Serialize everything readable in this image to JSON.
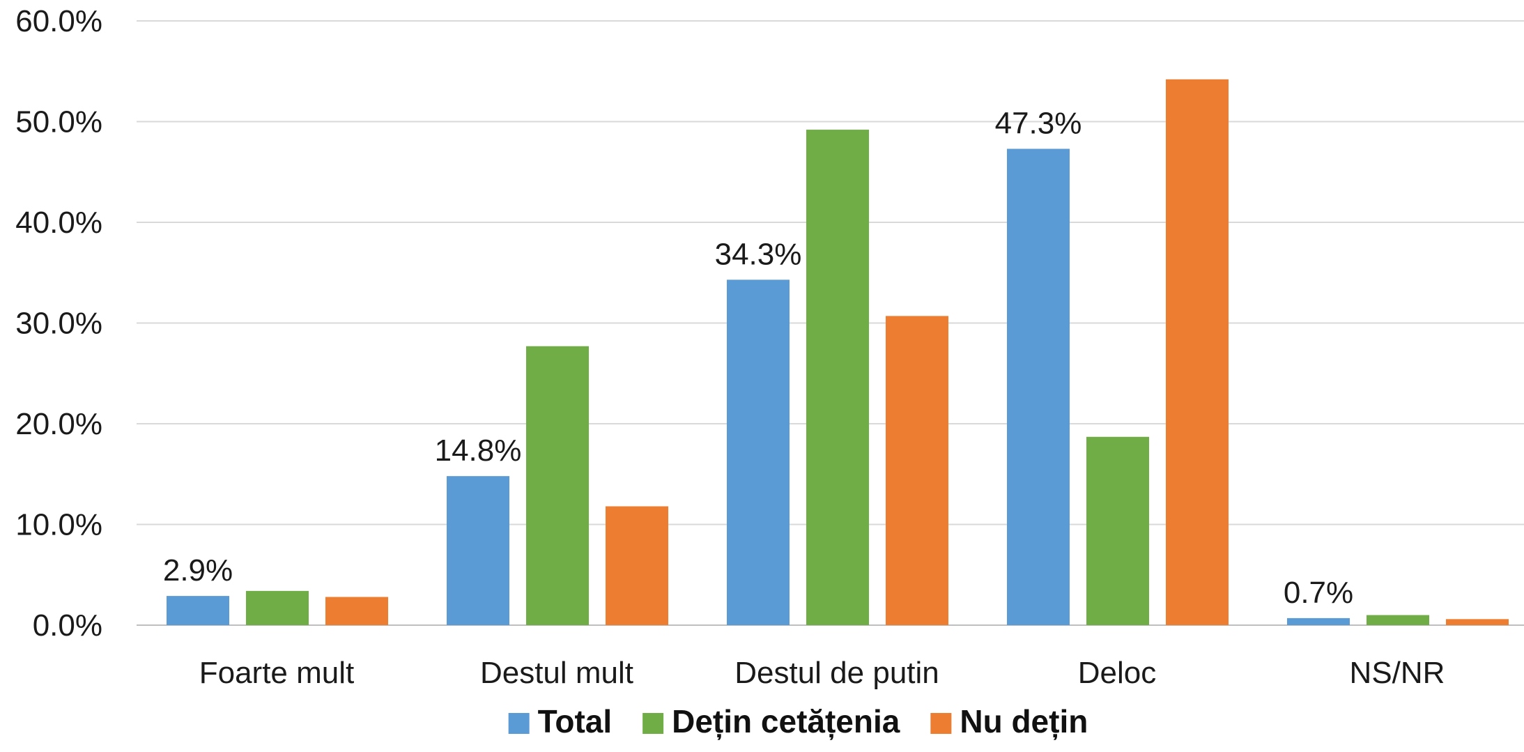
{
  "chart_data": {
    "type": "bar",
    "categories": [
      "Foarte mult",
      "Destul mult",
      "Destul de putin",
      "Deloc",
      "NS/NR"
    ],
    "series": [
      {
        "name": "Total",
        "color": "#5b9bd5",
        "values": [
          2.9,
          14.8,
          34.3,
          47.3,
          0.7
        ]
      },
      {
        "name": "Dețin cetățenia",
        "color": "#70ad47",
        "values": [
          3.4,
          27.7,
          49.2,
          18.7,
          1.0
        ]
      },
      {
        "name": "Nu dețin",
        "color": "#ed7d31",
        "values": [
          2.8,
          11.8,
          30.7,
          54.2,
          0.6
        ]
      }
    ],
    "data_labels": [
      {
        "series": 0,
        "category": 0,
        "text": "2.9%"
      },
      {
        "series": 0,
        "category": 1,
        "text": "14.8%"
      },
      {
        "series": 0,
        "category": 2,
        "text": "34.3%"
      },
      {
        "series": 0,
        "category": 3,
        "text": "47.3%"
      },
      {
        "series": 0,
        "category": 4,
        "text": "0.7%"
      }
    ],
    "yticks": [
      "0.0%",
      "10.0%",
      "20.0%",
      "30.0%",
      "40.0%",
      "50.0%",
      "60.0%"
    ],
    "ylim": [
      0,
      60
    ],
    "grid": true,
    "legend_position": "bottom",
    "title": "",
    "xlabel": "",
    "ylabel": ""
  }
}
